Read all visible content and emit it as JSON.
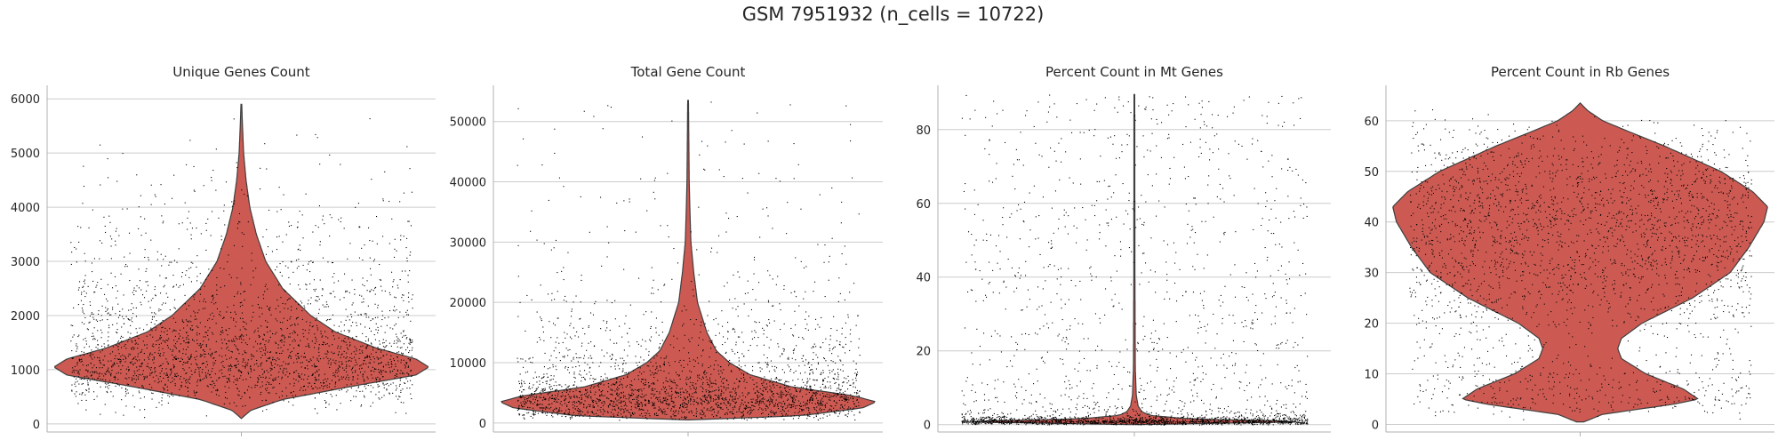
{
  "figure": {
    "suptitle": "GSM 7951932 (n_cells = 10722)"
  },
  "colors": {
    "violin_fill": "#cc5a52",
    "violin_edge": "#3f3f3f",
    "points": "#000000",
    "grid": "#cccccc",
    "spine": "#b0b0b0"
  },
  "chart_data": [
    {
      "type": "violin",
      "title": "Unique Genes Count",
      "xlabel": "",
      "ylabel": "",
      "ylim": [
        -150,
        6250
      ],
      "yticks": [
        0,
        1000,
        2000,
        3000,
        4000,
        5000,
        6000
      ],
      "grid": "horizontal",
      "data_min": 100,
      "data_max": 5900,
      "density_profile": [
        [
          100,
          0.0
        ],
        [
          250,
          0.05
        ],
        [
          450,
          0.22
        ],
        [
          700,
          0.6
        ],
        [
          900,
          0.93
        ],
        [
          1050,
          1.0
        ],
        [
          1200,
          0.93
        ],
        [
          1400,
          0.72
        ],
        [
          1700,
          0.5
        ],
        [
          2000,
          0.37
        ],
        [
          2500,
          0.22
        ],
        [
          3000,
          0.13
        ],
        [
          3500,
          0.08
        ],
        [
          4000,
          0.045
        ],
        [
          4500,
          0.025
        ],
        [
          5000,
          0.012
        ],
        [
          5500,
          0.006
        ],
        [
          5900,
          0.002
        ]
      ]
    },
    {
      "type": "violin",
      "title": "Total Gene Count",
      "xlabel": "",
      "ylabel": "",
      "ylim": [
        -1500,
        56000
      ],
      "yticks": [
        0,
        10000,
        20000,
        30000,
        40000,
        50000
      ],
      "grid": "horizontal",
      "data_min": 500,
      "data_max": 53500,
      "density_profile": [
        [
          500,
          0.0
        ],
        [
          1200,
          0.6
        ],
        [
          2500,
          0.93
        ],
        [
          3500,
          1.0
        ],
        [
          4500,
          0.88
        ],
        [
          6000,
          0.55
        ],
        [
          8000,
          0.33
        ],
        [
          10000,
          0.22
        ],
        [
          12000,
          0.15
        ],
        [
          15000,
          0.1
        ],
        [
          18000,
          0.07
        ],
        [
          20000,
          0.05
        ],
        [
          25000,
          0.03
        ],
        [
          30000,
          0.015
        ],
        [
          35000,
          0.01
        ],
        [
          40000,
          0.006
        ],
        [
          53500,
          0.002
        ]
      ]
    },
    {
      "type": "violin",
      "title": "Percent Count in Mt Genes",
      "xlabel": "",
      "ylabel": "",
      "ylim": [
        -2,
        92
      ],
      "yticks": [
        0,
        20,
        40,
        60,
        80
      ],
      "grid": "horizontal",
      "data_min": 0,
      "data_max": 89.5,
      "density_profile": [
        [
          0,
          0.02
        ],
        [
          0.3,
          0.35
        ],
        [
          0.8,
          1.0
        ],
        [
          1.5,
          0.3
        ],
        [
          2.5,
          0.08
        ],
        [
          3.5,
          0.04
        ],
        [
          5,
          0.02
        ],
        [
          8,
          0.01
        ],
        [
          15,
          0.005
        ],
        [
          40,
          0.003
        ],
        [
          89.5,
          0.002
        ]
      ]
    },
    {
      "type": "violin",
      "title": "Percent Count in Rb Genes",
      "xlabel": "",
      "ylabel": "",
      "ylim": [
        -1.5,
        67
      ],
      "yticks": [
        0,
        10,
        20,
        30,
        40,
        50,
        60
      ],
      "grid": "horizontal",
      "data_min": 0.5,
      "data_max": 63.5,
      "density_profile": [
        [
          0.5,
          0.02
        ],
        [
          2,
          0.12
        ],
        [
          4,
          0.5
        ],
        [
          5,
          0.63
        ],
        [
          7,
          0.55
        ],
        [
          10,
          0.35
        ],
        [
          13,
          0.22
        ],
        [
          15,
          0.2
        ],
        [
          17,
          0.22
        ],
        [
          20,
          0.33
        ],
        [
          25,
          0.6
        ],
        [
          30,
          0.8
        ],
        [
          35,
          0.9
        ],
        [
          40,
          0.98
        ],
        [
          43,
          1.0
        ],
        [
          46,
          0.92
        ],
        [
          50,
          0.75
        ],
        [
          55,
          0.45
        ],
        [
          58,
          0.25
        ],
        [
          60,
          0.12
        ],
        [
          62,
          0.04
        ],
        [
          63.5,
          0.0
        ]
      ]
    }
  ]
}
